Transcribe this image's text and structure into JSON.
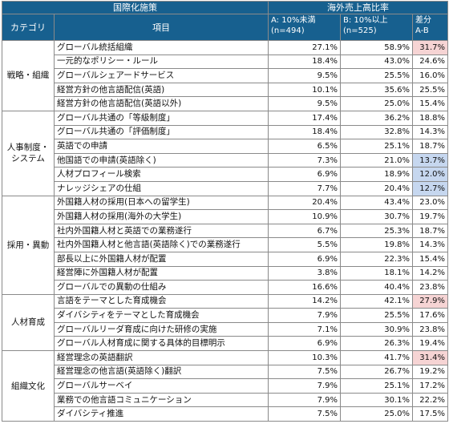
{
  "header": {
    "group_title": "国際化施策",
    "ratio_title": "海外売上高比率",
    "category_col": "カテゴリ",
    "item_col": "項目",
    "col_a_line1": "A: 10%未満",
    "col_a_line2": "(n=494)",
    "col_b_line1": "B: 10%以上",
    "col_b_line2": "(n=525)",
    "col_diff_line1": "差分",
    "col_diff_line2": "A-B"
  },
  "colors": {
    "header_bg": "#17608f",
    "highlight_pink": "#f6d4d4",
    "highlight_blue": "#c6d7ef"
  },
  "groups": [
    {
      "category": "戦略・組織",
      "rows": [
        {
          "item": "グローバル統括組織",
          "a": "27.1%",
          "b": "58.9%",
          "diff": "31.7%",
          "hl": "pink"
        },
        {
          "item": "一元的なポリシー・ルール",
          "a": "18.4%",
          "b": "43.0%",
          "diff": "24.6%",
          "hl": ""
        },
        {
          "item": "グローバルシェアードサービス",
          "a": "9.5%",
          "b": "25.5%",
          "diff": "16.0%",
          "hl": ""
        },
        {
          "item": "経営方針の他言語配信(英語)",
          "a": "10.1%",
          "b": "35.6%",
          "diff": "25.5%",
          "hl": ""
        },
        {
          "item": "経営方針の他言語配信(英語以外)",
          "a": "9.5%",
          "b": "25.0%",
          "diff": "15.4%",
          "hl": ""
        }
      ]
    },
    {
      "category": "人事制度・システム",
      "rows": [
        {
          "item": "グローバル共通の「等級制度」",
          "a": "17.4%",
          "b": "36.2%",
          "diff": "18.8%",
          "hl": ""
        },
        {
          "item": "グローバル共通の「評価制度」",
          "a": "18.4%",
          "b": "32.8%",
          "diff": "14.3%",
          "hl": ""
        },
        {
          "item": "英語での申請",
          "a": "6.5%",
          "b": "25.1%",
          "diff": "18.7%",
          "hl": ""
        },
        {
          "item": "他国語での申請(英語除く)",
          "a": "7.3%",
          "b": "21.0%",
          "diff": "13.7%",
          "hl": "blue"
        },
        {
          "item": "人材プロフィール検索",
          "a": "6.9%",
          "b": "18.9%",
          "diff": "12.0%",
          "hl": "blue"
        },
        {
          "item": "ナレッジシェアの仕組",
          "a": "7.7%",
          "b": "20.4%",
          "diff": "12.7%",
          "hl": "blue"
        }
      ]
    },
    {
      "category": "採用・異動",
      "rows": [
        {
          "item": "外国籍人材の採用(日本への留学生)",
          "a": "20.4%",
          "b": "43.4%",
          "diff": "23.0%",
          "hl": ""
        },
        {
          "item": "外国籍人材の採用(海外の大学生)",
          "a": "10.9%",
          "b": "30.7%",
          "diff": "19.7%",
          "hl": ""
        },
        {
          "item": "社内外国籍人材と英語での業務遂行",
          "a": "6.7%",
          "b": "25.3%",
          "diff": "18.7%",
          "hl": ""
        },
        {
          "item": "社内外国籍人材と他言語(英語除く)での業務遂行",
          "a": "5.5%",
          "b": "19.8%",
          "diff": "14.3%",
          "hl": ""
        },
        {
          "item": "部長以上に外国籍人材が配置",
          "a": "6.9%",
          "b": "22.3%",
          "diff": "15.4%",
          "hl": ""
        },
        {
          "item": "経営陣に外国籍人材が配置",
          "a": "3.8%",
          "b": "18.1%",
          "diff": "14.2%",
          "hl": ""
        },
        {
          "item": "グローバルでの異動の仕組み",
          "a": "16.6%",
          "b": "40.4%",
          "diff": "23.8%",
          "hl": ""
        }
      ]
    },
    {
      "category": "人材育成",
      "rows": [
        {
          "item": "言語をテーマとした育成機会",
          "a": "14.2%",
          "b": "42.1%",
          "diff": "27.9%",
          "hl": "pink"
        },
        {
          "item": "ダイバシティをテーマとした育成機会",
          "a": "7.9%",
          "b": "25.5%",
          "diff": "17.6%",
          "hl": ""
        },
        {
          "item": "グローバルリーダ育成に向けた研修の実施",
          "a": "7.1%",
          "b": "30.9%",
          "diff": "23.8%",
          "hl": ""
        },
        {
          "item": "グローバル人材育成に関する具体的目標明示",
          "a": "6.9%",
          "b": "26.3%",
          "diff": "19.4%",
          "hl": ""
        }
      ]
    },
    {
      "category": "組織文化",
      "rows": [
        {
          "item": "経営理念の英語翻訳",
          "a": "10.3%",
          "b": "41.7%",
          "diff": "31.4%",
          "hl": "pink"
        },
        {
          "item": "経営理念の他言語(英語除く)翻訳",
          "a": "7.5%",
          "b": "26.7%",
          "diff": "19.2%",
          "hl": ""
        },
        {
          "item": "グローバルサーベイ",
          "a": "7.9%",
          "b": "25.1%",
          "diff": "17.2%",
          "hl": ""
        },
        {
          "item": "業務での他言語コミュニケーション",
          "a": "7.9%",
          "b": "30.1%",
          "diff": "22.2%",
          "hl": ""
        },
        {
          "item": "ダイバシティ推進",
          "a": "7.5%",
          "b": "25.0%",
          "diff": "17.5%",
          "hl": ""
        }
      ]
    }
  ]
}
